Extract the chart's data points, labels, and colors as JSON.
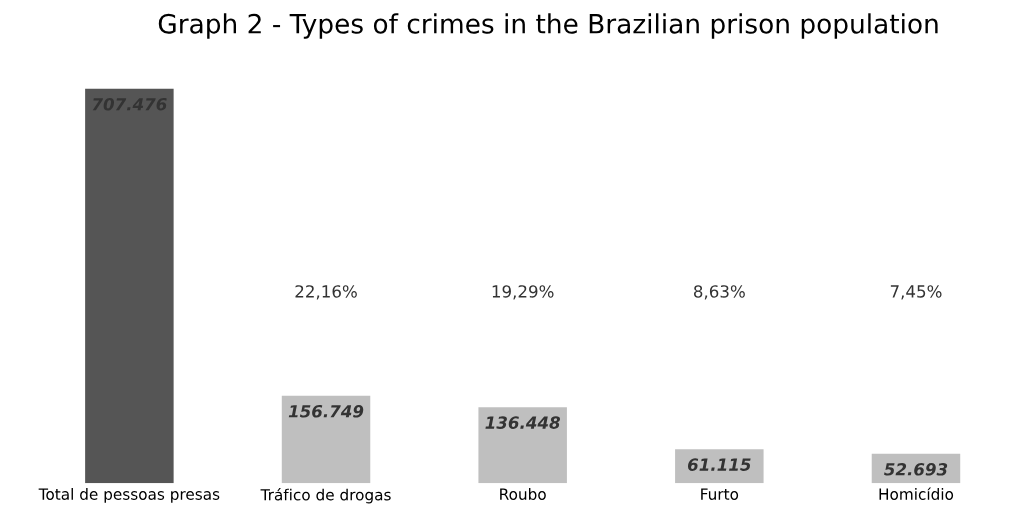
{
  "chart_data": {
    "type": "bar",
    "title": "Graph 2 - Types of crimes in the Brazilian prison population",
    "categories": [
      "Total de pessoas presas",
      "Tráfico de drogas",
      "Roubo",
      "Furto",
      "Homicídio"
    ],
    "values": [
      707476,
      156749,
      136448,
      61115,
      52693
    ],
    "colors": [
      "#555555",
      "#bfbfbf",
      "#bfbfbf",
      "#bfbfbf",
      "#bfbfbf"
    ],
    "value_labels": [
      "707.476",
      "156.749",
      "136.448",
      "61.115",
      "52.693"
    ],
    "annotations": [
      "22,16%",
      "19,29%",
      "8,63%",
      "7,45%"
    ],
    "tick_labels": "x",
    "grid": false,
    "legend": false
  }
}
